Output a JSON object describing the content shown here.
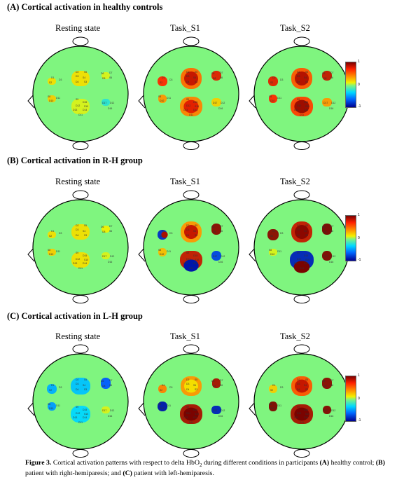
{
  "sections": [
    {
      "title": "(A) Cortical activation in healthy controls"
    },
    {
      "title": "(B) Cortical activation in R-H group"
    },
    {
      "title": "(C) Cortical activation in L-H group"
    }
  ],
  "panel_labels": [
    "Resting state",
    "Task_S1",
    "Task_S2"
  ],
  "colorbar": {
    "max": "1",
    "mid": "0",
    "min": "-1"
  },
  "channel_labels": [
    "D1",
    "D2",
    "D3",
    "D4",
    "D5",
    "D6",
    "D7",
    "D8",
    "D9",
    "D10",
    "D11",
    "D12",
    "D13",
    "D14",
    "D15",
    "D16",
    "D17",
    "S1",
    "S2",
    "S3",
    "S4",
    "S5",
    "S6",
    "S7",
    "S8",
    "S9",
    "S10"
  ],
  "caption": {
    "fig": "Figure 3.",
    "p1": "  Cortical activation patterns with respect to delta HbO",
    "sub": "2",
    "p2": " during different conditions in participants ",
    "a": "(A)",
    "p3": " healthy control; ",
    "b": "(B)",
    "p4": " patient with right-hemiparesis; and ",
    "c": "(C)",
    "p5": " patient with left-hemiparesis."
  },
  "colors": {
    "background": "#7ff57f",
    "outline": "#000000"
  }
}
